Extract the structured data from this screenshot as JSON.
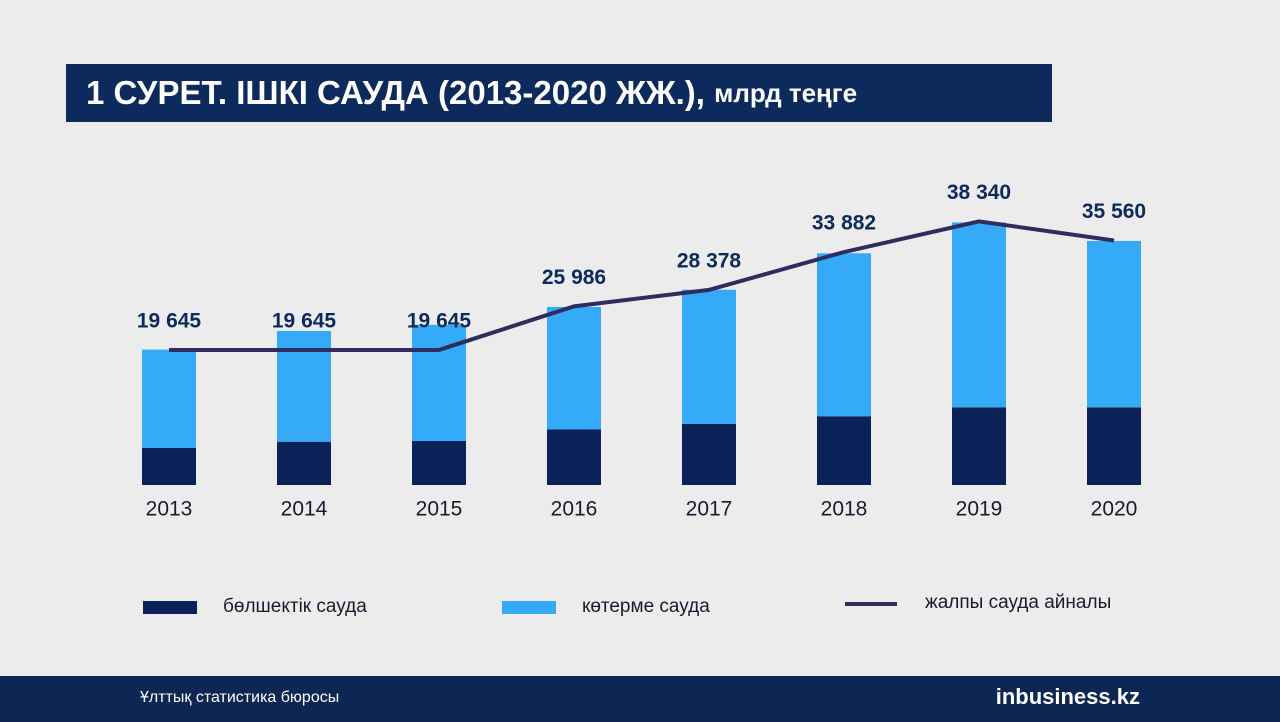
{
  "chart_data": {
    "type": "stacked_bar_line",
    "title": "1 СУРЕТ. ІШКІ САУДА (2013-2020 ЖЖ.),",
    "unit": "млрд теңге",
    "categories": [
      "2013",
      "2014",
      "2015",
      "2016",
      "2017",
      "2018",
      "2019",
      "2020"
    ],
    "series": [
      {
        "name": "бөлшектік сауда",
        "color": "#0b2259",
        "kind": "bar",
        "values": [
          5400,
          6300,
          6400,
          8100,
          8900,
          10000,
          11300,
          11300
        ]
      },
      {
        "name": "көтерме сауда",
        "color": "#35aaf9",
        "kind": "bar",
        "values": [
          14300,
          16100,
          16900,
          17800,
          19500,
          23700,
          26900,
          24200
        ]
      },
      {
        "name": "жалпы сауда айналы",
        "color": "#2e2d5e",
        "kind": "line",
        "values": [
          19645,
          19645,
          19645,
          25986,
          28378,
          33882,
          38340,
          35560
        ],
        "value_labels": [
          "19 645",
          "19 645",
          "19 645",
          "25 986",
          "28 378",
          "33 882",
          "38 340",
          "35 560"
        ]
      }
    ],
    "ylim": [
      0,
      40000
    ]
  },
  "footer": {
    "source": "Ұлттық статистика бюросы",
    "logo": "inbusiness.kz"
  }
}
